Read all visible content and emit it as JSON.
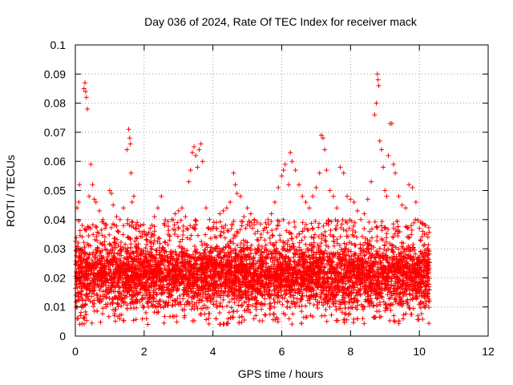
{
  "chart_data": {
    "type": "scatter",
    "title": "Day 036 of 2024, Rate Of TEC Index for receiver mack",
    "xlabel": "GPS time / hours",
    "ylabel": "ROTI / TECUs",
    "xlim": [
      0,
      12
    ],
    "ylim": [
      0,
      0.1
    ],
    "xticks": [
      0,
      2,
      4,
      6,
      8,
      10,
      12
    ],
    "xtick_labels": [
      "0",
      "2",
      "4",
      "6",
      "8",
      "10",
      "12"
    ],
    "yticks": [
      0,
      0.01,
      0.02,
      0.03,
      0.04,
      0.05,
      0.06,
      0.07,
      0.08,
      0.09,
      0.1
    ],
    "ytick_labels": [
      "0",
      "0.01",
      "0.02",
      "0.03",
      "0.04",
      "0.05",
      "0.06",
      "0.07",
      "0.08",
      "0.09",
      "0.1"
    ],
    "grid": true,
    "marker": "+",
    "color": "#ff0000",
    "data_range_hours": [
      0,
      10.3
    ],
    "series": [
      {
        "name": "ROTI",
        "points": [
          [
            0.05,
            0.044
          ],
          [
            0.1,
            0.046
          ],
          [
            0.12,
            0.052
          ],
          [
            0.2,
            0.038
          ],
          [
            0.25,
            0.085
          ],
          [
            0.28,
            0.087
          ],
          [
            0.3,
            0.084
          ],
          [
            0.32,
            0.082
          ],
          [
            0.35,
            0.078
          ],
          [
            0.4,
            0.048
          ],
          [
            0.45,
            0.059
          ],
          [
            0.5,
            0.052
          ],
          [
            0.55,
            0.047
          ],
          [
            0.6,
            0.046
          ],
          [
            0.7,
            0.043
          ],
          [
            0.8,
            0.04
          ],
          [
            0.9,
            0.038
          ],
          [
            1.0,
            0.05
          ],
          [
            1.05,
            0.049
          ],
          [
            1.1,
            0.045
          ],
          [
            1.2,
            0.041
          ],
          [
            1.3,
            0.04
          ],
          [
            1.4,
            0.044
          ],
          [
            1.5,
            0.064
          ],
          [
            1.55,
            0.071
          ],
          [
            1.58,
            0.068
          ],
          [
            1.6,
            0.066
          ],
          [
            1.62,
            0.056
          ],
          [
            1.65,
            0.046
          ],
          [
            1.7,
            0.048
          ],
          [
            1.8,
            0.039
          ],
          [
            1.9,
            0.038
          ],
          [
            2.0,
            0.036
          ],
          [
            2.1,
            0.035
          ],
          [
            2.2,
            0.034
          ],
          [
            2.3,
            0.041
          ],
          [
            2.4,
            0.044
          ],
          [
            2.5,
            0.048
          ],
          [
            2.6,
            0.038
          ],
          [
            2.7,
            0.035
          ],
          [
            2.8,
            0.04
          ],
          [
            2.9,
            0.042
          ],
          [
            3.0,
            0.043
          ],
          [
            3.1,
            0.044
          ],
          [
            3.2,
            0.041
          ],
          [
            3.3,
            0.053
          ],
          [
            3.35,
            0.057
          ],
          [
            3.4,
            0.063
          ],
          [
            3.45,
            0.065
          ],
          [
            3.5,
            0.062
          ],
          [
            3.55,
            0.058
          ],
          [
            3.6,
            0.064
          ],
          [
            3.65,
            0.066
          ],
          [
            3.7,
            0.06
          ],
          [
            3.8,
            0.044
          ],
          [
            3.9,
            0.04
          ],
          [
            4.0,
            0.037
          ],
          [
            4.1,
            0.039
          ],
          [
            4.2,
            0.042
          ],
          [
            4.3,
            0.043
          ],
          [
            4.4,
            0.044
          ],
          [
            4.5,
            0.046
          ],
          [
            4.6,
            0.056
          ],
          [
            4.65,
            0.052
          ],
          [
            4.7,
            0.049
          ],
          [
            4.8,
            0.048
          ],
          [
            4.9,
            0.041
          ],
          [
            5.0,
            0.044
          ],
          [
            5.1,
            0.042
          ],
          [
            5.2,
            0.04
          ],
          [
            5.3,
            0.036
          ],
          [
            5.4,
            0.035
          ],
          [
            5.5,
            0.037
          ],
          [
            5.6,
            0.04
          ],
          [
            5.7,
            0.042
          ],
          [
            5.8,
            0.046
          ],
          [
            5.9,
            0.051
          ],
          [
            6.0,
            0.055
          ],
          [
            6.05,
            0.057
          ],
          [
            6.1,
            0.059
          ],
          [
            6.2,
            0.052
          ],
          [
            6.25,
            0.063
          ],
          [
            6.3,
            0.06
          ],
          [
            6.4,
            0.057
          ],
          [
            6.5,
            0.052
          ],
          [
            6.6,
            0.048
          ],
          [
            6.7,
            0.046
          ],
          [
            6.8,
            0.044
          ],
          [
            6.9,
            0.048
          ],
          [
            7.0,
            0.051
          ],
          [
            7.1,
            0.056
          ],
          [
            7.15,
            0.069
          ],
          [
            7.2,
            0.068
          ],
          [
            7.25,
            0.064
          ],
          [
            7.3,
            0.057
          ],
          [
            7.4,
            0.05
          ],
          [
            7.5,
            0.048
          ],
          [
            7.6,
            0.044
          ],
          [
            7.7,
            0.058
          ],
          [
            7.8,
            0.056
          ],
          [
            7.9,
            0.048
          ],
          [
            8.0,
            0.047
          ],
          [
            8.1,
            0.046
          ],
          [
            8.2,
            0.043
          ],
          [
            8.3,
            0.04
          ],
          [
            8.4,
            0.042
          ],
          [
            8.5,
            0.047
          ],
          [
            8.6,
            0.053
          ],
          [
            8.7,
            0.076
          ],
          [
            8.75,
            0.08
          ],
          [
            8.78,
            0.09
          ],
          [
            8.8,
            0.088
          ],
          [
            8.82,
            0.086
          ],
          [
            8.85,
            0.067
          ],
          [
            8.9,
            0.064
          ],
          [
            8.95,
            0.058
          ],
          [
            9.0,
            0.05
          ],
          [
            9.05,
            0.048
          ],
          [
            9.1,
            0.062
          ],
          [
            9.15,
            0.073
          ],
          [
            9.2,
            0.073
          ],
          [
            9.25,
            0.059
          ],
          [
            9.3,
            0.056
          ],
          [
            9.4,
            0.048
          ],
          [
            9.5,
            0.045
          ],
          [
            9.6,
            0.044
          ],
          [
            9.7,
            0.052
          ],
          [
            9.8,
            0.051
          ],
          [
            9.9,
            0.046
          ],
          [
            10.0,
            0.037
          ],
          [
            10.1,
            0.036
          ],
          [
            10.2,
            0.035
          ],
          [
            10.25,
            0.034
          ]
        ]
      }
    ]
  }
}
